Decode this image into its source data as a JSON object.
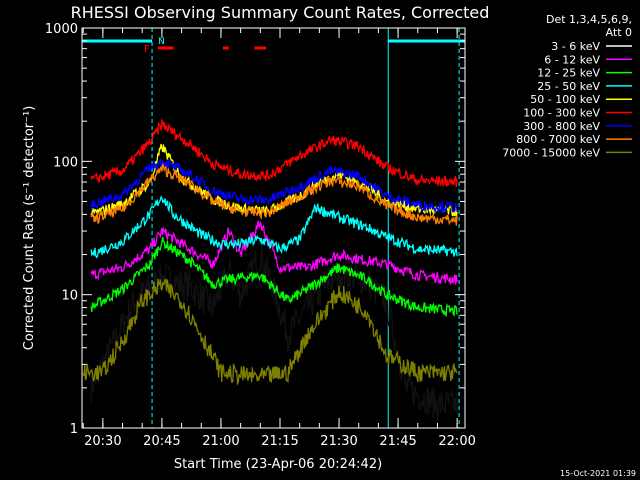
{
  "chart_data": {
    "type": "line",
    "title": "RHESSI Observing Summary Count Rates, Corrected",
    "xlabel": "Start Time (23-Apr-06 20:24:42)",
    "ylabel": "Corrected Count Rate (s⁻¹ detector⁻¹)",
    "yscale": "log",
    "ylim": [
      1,
      1000
    ],
    "y_ticks": [
      {
        "value": 1,
        "label": "1"
      },
      {
        "value": 10,
        "label": "10"
      },
      {
        "value": 100,
        "label": "100"
      },
      {
        "value": 1000,
        "label": "1000"
      }
    ],
    "xlim": [
      "20:24:42",
      "22:02:00"
    ],
    "x_ticks": [
      "20:30",
      "20:45",
      "21:00",
      "21:15",
      "21:30",
      "21:45",
      "22:00"
    ],
    "timestamp": "15-Oct-2021 01:39",
    "legend_header": [
      "Det 1,3,4,5,6,9,",
      "Att 0"
    ],
    "legend_position": "top-right, outside plot",
    "flags": {
      "night_label": "N",
      "flare_label": "F",
      "night_color": "#00ffff",
      "flare_color": "#ff0000",
      "night_intervals": [
        [
          "20:24:42",
          "20:42:30"
        ],
        [
          "21:42:30",
          "22:02:00"
        ]
      ],
      "flare_intervals": [
        [
          "20:44:00",
          "20:48:00"
        ],
        [
          "21:00:30",
          "21:02:00"
        ],
        [
          "21:08:30",
          "21:11:30"
        ]
      ]
    },
    "dashed_lines": [
      "20:42:30",
      "22:00:30"
    ],
    "solid_lines": [
      "21:42:30"
    ],
    "series": [
      {
        "name": "3 - 6 keV",
        "color": "#000000",
        "points": [
          [
            "20:27",
            "2.0"
          ],
          [
            "20:33",
            "4.5"
          ],
          [
            "20:38",
            "9.0"
          ],
          [
            "20:45",
            "13.5"
          ],
          [
            "20:52",
            "11.5"
          ],
          [
            "20:58",
            "8.0"
          ],
          [
            "21:02",
            "15.0"
          ],
          [
            "21:05",
            "10.0"
          ],
          [
            "21:10",
            "20.0"
          ],
          [
            "21:13",
            "12.0"
          ],
          [
            "21:17",
            "5.0"
          ],
          [
            "21:22",
            "8.0"
          ],
          [
            "21:30",
            "15.0"
          ],
          [
            "21:37",
            "12.5"
          ],
          [
            "21:42",
            "9.0"
          ],
          [
            "21:47",
            "2.0"
          ],
          [
            "21:55",
            "1.5"
          ],
          [
            "22:00",
            "1.5"
          ]
        ]
      },
      {
        "name": "6 - 12 keV",
        "color": "#ff00ff",
        "points": [
          [
            "20:27",
            "14"
          ],
          [
            "20:35",
            "16"
          ],
          [
            "20:42",
            "22"
          ],
          [
            "20:45",
            "30"
          ],
          [
            "20:52",
            "22"
          ],
          [
            "20:58",
            "17"
          ],
          [
            "21:02",
            "30"
          ],
          [
            "21:05",
            "20"
          ],
          [
            "21:10",
            "35"
          ],
          [
            "21:15",
            "16"
          ],
          [
            "21:22",
            "16"
          ],
          [
            "21:30",
            "20"
          ],
          [
            "21:37",
            "18"
          ],
          [
            "21:42",
            "17"
          ],
          [
            "21:50",
            "14"
          ],
          [
            "22:00",
            "13"
          ]
        ]
      },
      {
        "name": "12 - 25 keV",
        "color": "#00ff00",
        "points": [
          [
            "20:27",
            "8"
          ],
          [
            "20:35",
            "11"
          ],
          [
            "20:42",
            "17"
          ],
          [
            "20:45",
            "25"
          ],
          [
            "20:52",
            "18"
          ],
          [
            "20:58",
            "12"
          ],
          [
            "21:02",
            "13"
          ],
          [
            "21:10",
            "14"
          ],
          [
            "21:17",
            "9"
          ],
          [
            "21:22",
            "11"
          ],
          [
            "21:30",
            "16"
          ],
          [
            "21:37",
            "13"
          ],
          [
            "21:42",
            "10"
          ],
          [
            "21:50",
            "8"
          ],
          [
            "22:00",
            "7.5"
          ]
        ]
      },
      {
        "name": "25 - 50 keV",
        "color": "#00ffff",
        "points": [
          [
            "20:27",
            "20"
          ],
          [
            "20:35",
            "25"
          ],
          [
            "20:42",
            "40"
          ],
          [
            "20:45",
            "55"
          ],
          [
            "20:48",
            "40"
          ],
          [
            "20:55",
            "28"
          ],
          [
            "21:00",
            "24"
          ],
          [
            "21:05",
            "24"
          ],
          [
            "21:10",
            "26"
          ],
          [
            "21:15",
            "22"
          ],
          [
            "21:20",
            "26"
          ],
          [
            "21:24",
            "45"
          ],
          [
            "21:30",
            "38"
          ],
          [
            "21:37",
            "32"
          ],
          [
            "21:42",
            "27"
          ],
          [
            "21:50",
            "22"
          ],
          [
            "22:00",
            "21"
          ]
        ]
      },
      {
        "name": "50 - 100 keV",
        "color": "#ffff00",
        "points": [
          [
            "20:27",
            "40"
          ],
          [
            "20:35",
            "48"
          ],
          [
            "20:42",
            "70"
          ],
          [
            "20:45",
            "130"
          ],
          [
            "20:50",
            "75"
          ],
          [
            "20:58",
            "52"
          ],
          [
            "21:05",
            "44"
          ],
          [
            "21:12",
            "42"
          ],
          [
            "21:20",
            "55"
          ],
          [
            "21:25",
            "70"
          ],
          [
            "21:30",
            "80"
          ],
          [
            "21:37",
            "65"
          ],
          [
            "21:42",
            "50"
          ],
          [
            "21:50",
            "44"
          ],
          [
            "22:00",
            "42"
          ]
        ]
      },
      {
        "name": "100 - 300 keV",
        "color": "#ff0000",
        "points": [
          [
            "20:27",
            "72"
          ],
          [
            "20:35",
            "85"
          ],
          [
            "20:42",
            "140"
          ],
          [
            "20:45",
            "190"
          ],
          [
            "20:52",
            "135"
          ],
          [
            "20:58",
            "95"
          ],
          [
            "21:05",
            "80"
          ],
          [
            "21:12",
            "78"
          ],
          [
            "21:20",
            "110"
          ],
          [
            "21:28",
            "145"
          ],
          [
            "21:35",
            "130"
          ],
          [
            "21:42",
            "90"
          ],
          [
            "21:50",
            "72"
          ],
          [
            "22:00",
            "70"
          ]
        ]
      },
      {
        "name": "300 - 800 keV",
        "color": "#0000ff",
        "points": [
          [
            "20:27",
            "47"
          ],
          [
            "20:35",
            "56"
          ],
          [
            "20:42",
            "90"
          ],
          [
            "20:45",
            "100"
          ],
          [
            "20:52",
            "80"
          ],
          [
            "20:58",
            "60"
          ],
          [
            "21:05",
            "52"
          ],
          [
            "21:12",
            "51"
          ],
          [
            "21:20",
            "65"
          ],
          [
            "21:28",
            "85"
          ],
          [
            "21:35",
            "78"
          ],
          [
            "21:42",
            "55"
          ],
          [
            "21:50",
            "47"
          ],
          [
            "22:00",
            "45"
          ]
        ]
      },
      {
        "name": "800 - 7000 keV",
        "color": "#ff8000",
        "points": [
          [
            "20:27",
            "36"
          ],
          [
            "20:35",
            "44"
          ],
          [
            "20:42",
            "72"
          ],
          [
            "20:45",
            "88"
          ],
          [
            "20:52",
            "68"
          ],
          [
            "20:58",
            "50"
          ],
          [
            "21:05",
            "42"
          ],
          [
            "21:12",
            "41"
          ],
          [
            "21:20",
            "55"
          ],
          [
            "21:28",
            "72"
          ],
          [
            "21:35",
            "65"
          ],
          [
            "21:42",
            "46"
          ],
          [
            "21:50",
            "38"
          ],
          [
            "22:00",
            "36"
          ]
        ]
      },
      {
        "name": "7000 - 15000 keV",
        "color": "#808000",
        "points": [
          [
            "20:25",
            "2.6"
          ],
          [
            "20:30",
            "2.6"
          ],
          [
            "20:35",
            "4.5"
          ],
          [
            "20:40",
            "9.0"
          ],
          [
            "20:45",
            "12.0"
          ],
          [
            "20:50",
            "9.0"
          ],
          [
            "20:55",
            "5.0"
          ],
          [
            "21:00",
            "2.6"
          ],
          [
            "21:10",
            "2.4"
          ],
          [
            "21:17",
            "2.6"
          ],
          [
            "21:22",
            "5.0"
          ],
          [
            "21:30",
            "10.5"
          ],
          [
            "21:37",
            "7.5"
          ],
          [
            "21:42",
            "3.5"
          ],
          [
            "21:50",
            "2.6"
          ],
          [
            "22:00",
            "2.6"
          ]
        ]
      }
    ]
  }
}
